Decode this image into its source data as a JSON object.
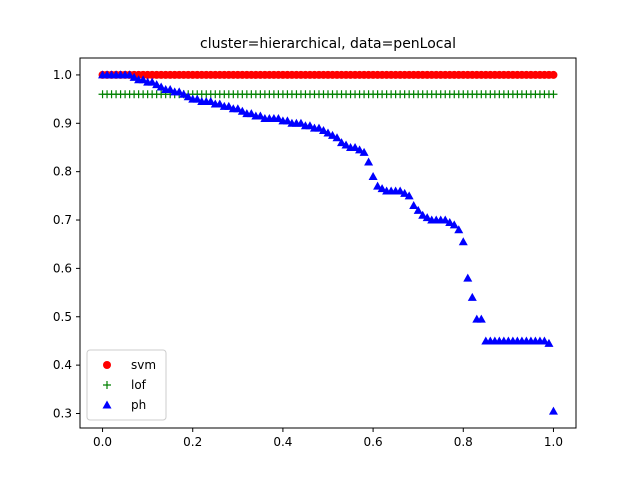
{
  "chart_data": {
    "type": "scatter",
    "title": "cluster=hierarchical, data=penLocal",
    "xlabel": "",
    "ylabel": "",
    "xlim": [
      -0.05,
      1.05
    ],
    "ylim": [
      0.27,
      1.035
    ],
    "xticks": [
      0.0,
      0.2,
      0.4,
      0.6,
      0.8,
      1.0
    ],
    "xtick_labels": [
      "0.0",
      "0.2",
      "0.4",
      "0.6",
      "0.8",
      "1.0"
    ],
    "yticks": [
      0.3,
      0.4,
      0.5,
      0.6,
      0.7,
      0.8,
      0.9,
      1.0
    ],
    "ytick_labels": [
      "0.3",
      "0.4",
      "0.5",
      "0.6",
      "0.7",
      "0.8",
      "0.9",
      "1.0"
    ],
    "grid": false,
    "legend": {
      "placement": "lower-left",
      "entries": [
        "svm",
        "lof",
        "ph"
      ]
    },
    "series": [
      {
        "name": "svm",
        "marker": "circle",
        "color": "#ff0000",
        "x_range": [
          0.0,
          1.0
        ],
        "count": 101,
        "y_constant": 1.0
      },
      {
        "name": "lof",
        "marker": "plus",
        "color": "#008000",
        "x_range": [
          0.0,
          1.0
        ],
        "count": 101,
        "y_constant": 0.96
      },
      {
        "name": "ph",
        "marker": "triangle",
        "color": "#0000ff",
        "x": [
          0.0,
          0.01,
          0.02,
          0.03,
          0.04,
          0.05,
          0.06,
          0.07,
          0.08,
          0.09,
          0.1,
          0.11,
          0.12,
          0.13,
          0.14,
          0.15,
          0.16,
          0.17,
          0.18,
          0.19,
          0.2,
          0.21,
          0.22,
          0.23,
          0.24,
          0.25,
          0.26,
          0.27,
          0.28,
          0.29,
          0.3,
          0.31,
          0.32,
          0.33,
          0.34,
          0.35,
          0.36,
          0.37,
          0.38,
          0.39,
          0.4,
          0.41,
          0.42,
          0.43,
          0.44,
          0.45,
          0.46,
          0.47,
          0.48,
          0.49,
          0.5,
          0.51,
          0.52,
          0.53,
          0.54,
          0.55,
          0.56,
          0.57,
          0.58,
          0.59,
          0.6,
          0.61,
          0.62,
          0.63,
          0.64,
          0.65,
          0.66,
          0.67,
          0.68,
          0.69,
          0.7,
          0.71,
          0.72,
          0.73,
          0.74,
          0.75,
          0.76,
          0.77,
          0.78,
          0.79,
          0.8,
          0.81,
          0.82,
          0.83,
          0.84,
          0.85,
          0.86,
          0.87,
          0.88,
          0.89,
          0.9,
          0.91,
          0.92,
          0.93,
          0.94,
          0.95,
          0.96,
          0.97,
          0.98,
          0.99,
          1.0
        ],
        "y": [
          1.0,
          1.0,
          1.0,
          1.0,
          1.0,
          1.0,
          1.0,
          0.995,
          0.99,
          0.99,
          0.985,
          0.985,
          0.98,
          0.975,
          0.97,
          0.97,
          0.965,
          0.965,
          0.96,
          0.955,
          0.95,
          0.95,
          0.945,
          0.945,
          0.945,
          0.94,
          0.94,
          0.935,
          0.935,
          0.93,
          0.93,
          0.925,
          0.92,
          0.92,
          0.915,
          0.915,
          0.91,
          0.91,
          0.91,
          0.91,
          0.905,
          0.905,
          0.9,
          0.9,
          0.9,
          0.895,
          0.895,
          0.89,
          0.89,
          0.885,
          0.88,
          0.875,
          0.87,
          0.86,
          0.855,
          0.85,
          0.85,
          0.845,
          0.84,
          0.82,
          0.79,
          0.77,
          0.765,
          0.76,
          0.76,
          0.76,
          0.76,
          0.755,
          0.75,
          0.73,
          0.72,
          0.71,
          0.705,
          0.7,
          0.7,
          0.7,
          0.7,
          0.695,
          0.69,
          0.68,
          0.655,
          0.58,
          0.54,
          0.495,
          0.495,
          0.45,
          0.45,
          0.45,
          0.45,
          0.45,
          0.45,
          0.45,
          0.45,
          0.45,
          0.45,
          0.45,
          0.45,
          0.45,
          0.45,
          0.445,
          0.305
        ]
      }
    ]
  }
}
